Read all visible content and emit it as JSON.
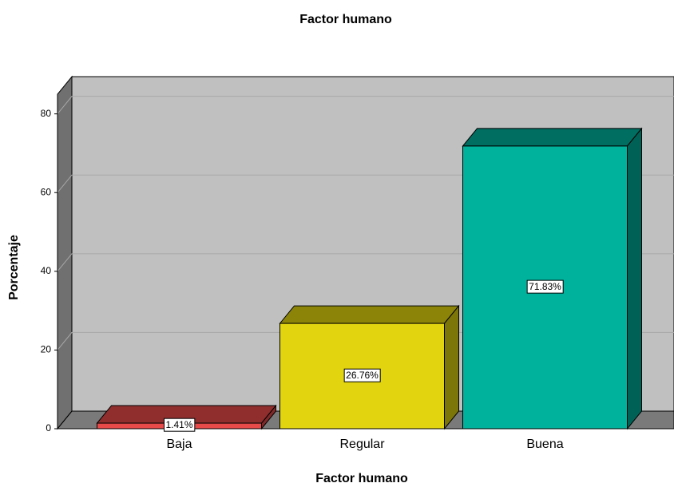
{
  "chart_data": {
    "type": "bar3d",
    "title": "Factor humano",
    "x_label": "Factor humano",
    "y_label": "Porcentaje",
    "categories": [
      "Baja",
      "Regular",
      "Buena"
    ],
    "values": [
      1.41,
      26.76,
      71.83
    ],
    "value_labels": [
      "1.41%",
      "26.76%",
      "71.83%"
    ],
    "colors": [
      "#e84a4a",
      "#e2d50f",
      "#00b29c"
    ],
    "ylim": [
      0,
      85
    ],
    "yticks": [
      0,
      20,
      40,
      60,
      80
    ],
    "grid": true
  }
}
